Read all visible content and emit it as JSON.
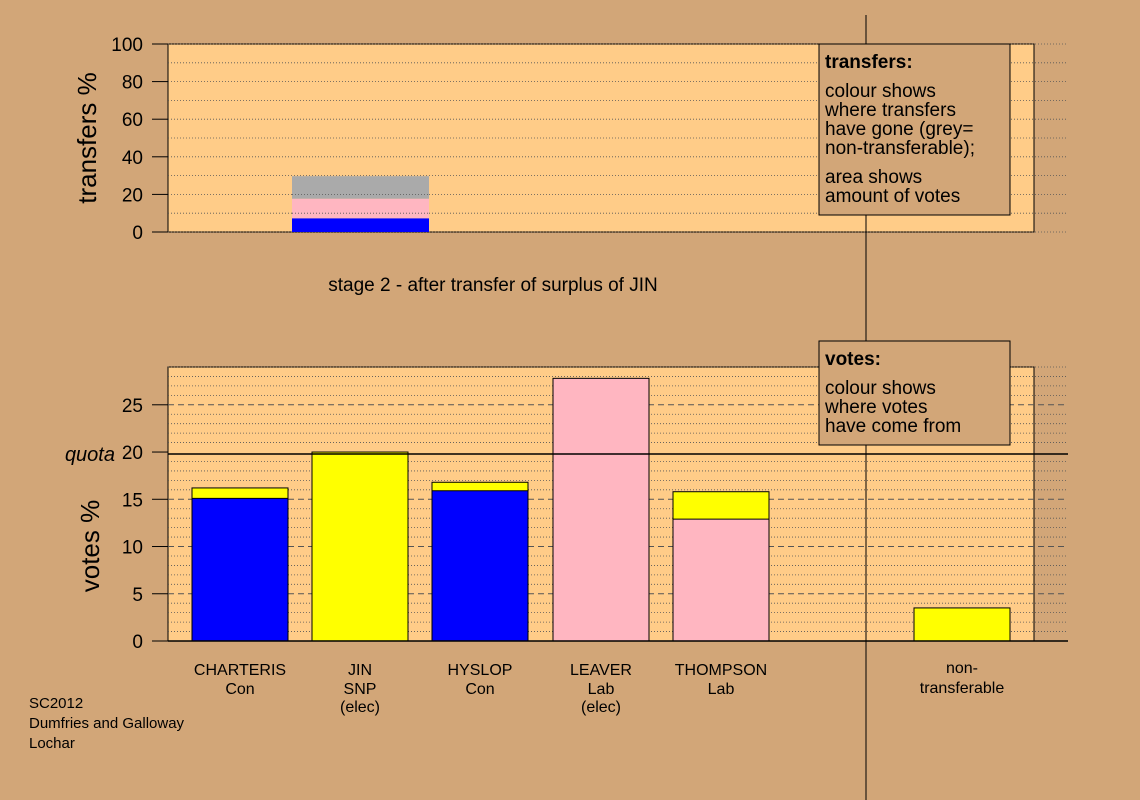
{
  "chart_data": [
    {
      "type": "bar",
      "stacked": true,
      "ylabel": "transfers %",
      "ylim": [
        0,
        100
      ],
      "yticks": [
        "0",
        "20",
        "40",
        "60",
        "80",
        "100"
      ],
      "grid": "dotted horizontal",
      "transfer_bar": {
        "segments": [
          {
            "color": "#0000ff",
            "value": 7.3
          },
          {
            "color": "#ffb6c1",
            "value": 10.4
          },
          {
            "color": "#aaaaaa",
            "value": 12.0
          }
        ]
      },
      "legend": {
        "title": "transfers:",
        "lines": [
          "colour shows",
          "where transfers",
          "have gone (grey=",
          "non-transferable);",
          "area shows",
          "amount of votes"
        ],
        "placement": "top-right"
      }
    },
    {
      "type": "bar",
      "stacked": true,
      "ylabel": "votes %",
      "ylim": [
        0,
        29
      ],
      "yticks": [
        "0",
        "5",
        "10",
        "15",
        "20",
        "25"
      ],
      "quota": {
        "value": 20,
        "label": "quota"
      },
      "candidates": [
        {
          "name": "CHARTERIS",
          "party": "Con",
          "note": "",
          "segments": [
            {
              "color": "#0000ff",
              "value": 15.1
            },
            {
              "color": "#ffff00",
              "value": 1.1
            }
          ]
        },
        {
          "name": "JIN",
          "party": "SNP",
          "note": "(elec)",
          "segments": [
            {
              "color": "#ffff00",
              "value": 20.0
            }
          ]
        },
        {
          "name": "HYSLOP",
          "party": "Con",
          "note": "",
          "segments": [
            {
              "color": "#0000ff",
              "value": 15.9
            },
            {
              "color": "#ffff00",
              "value": 0.9
            }
          ]
        },
        {
          "name": "LEAVER",
          "party": "Lab",
          "note": "(elec)",
          "segments": [
            {
              "color": "#ffb6c1",
              "value": 27.8
            }
          ]
        },
        {
          "name": "THOMPSON",
          "party": "Lab",
          "note": "",
          "segments": [
            {
              "color": "#ffb6c1",
              "value": 12.9
            },
            {
              "color": "#ffff00",
              "value": 2.9
            }
          ]
        }
      ],
      "non_transferable": {
        "label1": "non-",
        "label2": "transferable",
        "segments": [
          {
            "color": "#ffff00",
            "value": 3.5
          }
        ]
      },
      "legend": {
        "title": "votes:",
        "lines": [
          "colour shows",
          "where votes",
          "have come from"
        ],
        "placement": "top-right"
      }
    }
  ],
  "stage_label": "stage 2 - after transfer of surplus of JIN",
  "footer": {
    "line1": "SC2012",
    "line2": "Dumfries and Galloway",
    "line3": "Lochar"
  },
  "colors": {
    "background": "#d2a678",
    "plot_bg": "#ffcc88",
    "con": "#0000ff",
    "snp": "#ffff00",
    "lab": "#ffb6c1",
    "nontransferable": "#aaaaaa"
  }
}
